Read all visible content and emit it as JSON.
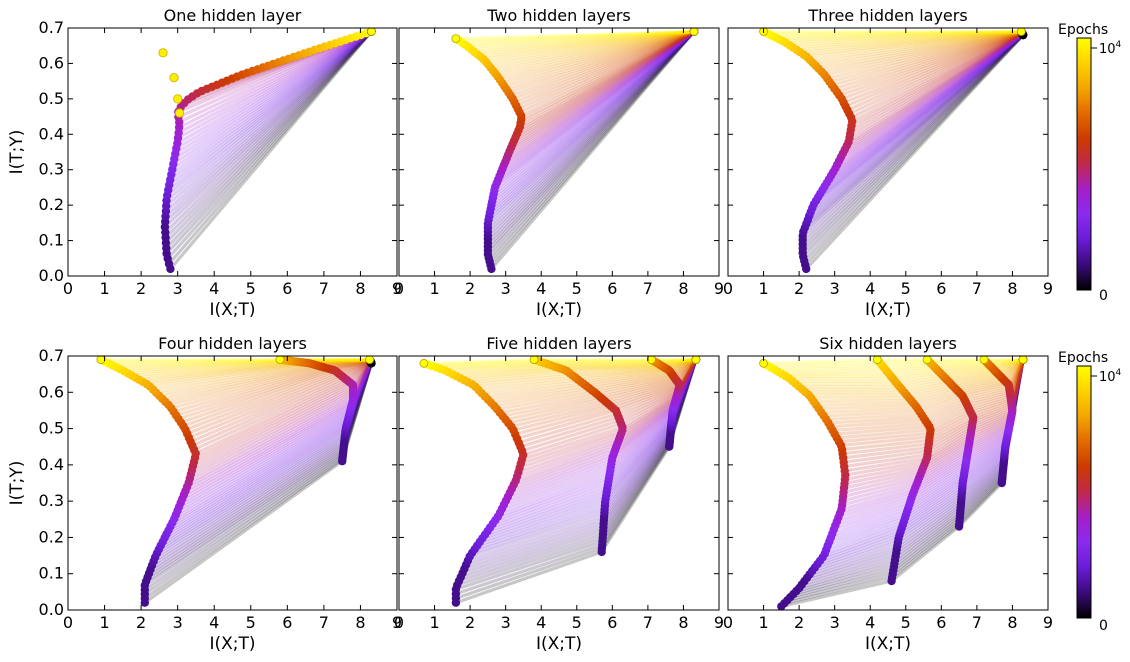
{
  "chart_data": [
    {
      "type": "line",
      "title": "One hidden layer",
      "xlabel": "I(X;T)",
      "ylabel": "I(T;Y)",
      "xlim": [
        0,
        9
      ],
      "ylim": [
        0,
        0.7
      ],
      "xticks": [
        0,
        1,
        2,
        3,
        4,
        5,
        6,
        7,
        8,
        9
      ],
      "yticks": [
        0.0,
        0.1,
        0.2,
        0.3,
        0.4,
        0.5,
        0.6,
        0.7
      ],
      "series": [
        {
          "points": [
            [
              2.8,
              0.02
            ],
            [
              2.7,
              0.06
            ],
            [
              2.65,
              0.14
            ],
            [
              2.7,
              0.22
            ],
            [
              2.85,
              0.3
            ],
            [
              3.0,
              0.38
            ],
            [
              3.05,
              0.43
            ],
            [
              3.0,
              0.46
            ],
            [
              3.1,
              0.48
            ],
            [
              3.3,
              0.5
            ],
            [
              3.6,
              0.52
            ],
            [
              4.8,
              0.57
            ],
            [
              6.8,
              0.64
            ],
            [
              8.3,
              0.69
            ]
          ]
        },
        {
          "points": [
            [
              8.3,
              0.69
            ]
          ]
        }
      ],
      "early_points": [
        [
          3.05,
          0.46
        ],
        [
          3.0,
          0.5
        ],
        [
          2.9,
          0.56
        ],
        [
          2.6,
          0.63
        ]
      ]
    },
    {
      "type": "line",
      "title": "Two hidden layers",
      "xlabel": "I(X;T)",
      "ylabel": "",
      "xlim": [
        0,
        9
      ],
      "ylim": [
        0,
        0.7
      ],
      "xticks": [
        0,
        1,
        2,
        3,
        4,
        5,
        6,
        7,
        8,
        9
      ],
      "yticks": [
        0.0,
        0.1,
        0.2,
        0.3,
        0.4,
        0.5,
        0.6,
        0.7
      ],
      "series": [
        {
          "points": [
            [
              2.6,
              0.02
            ],
            [
              2.5,
              0.06
            ],
            [
              2.5,
              0.15
            ],
            [
              2.7,
              0.25
            ],
            [
              3.1,
              0.35
            ],
            [
              3.4,
              0.42
            ],
            [
              3.45,
              0.45
            ],
            [
              3.2,
              0.5
            ],
            [
              2.8,
              0.56
            ],
            [
              2.4,
              0.61
            ],
            [
              1.9,
              0.65
            ],
            [
              1.6,
              0.67
            ]
          ]
        },
        {
          "points": [
            [
              8.3,
              0.69
            ]
          ]
        }
      ]
    },
    {
      "type": "line",
      "title": "Three hidden layers",
      "xlabel": "I(X;T)",
      "ylabel": "",
      "xlim": [
        0,
        9
      ],
      "ylim": [
        0,
        0.7
      ],
      "xticks": [
        0,
        1,
        2,
        3,
        4,
        5,
        6,
        7,
        8,
        9
      ],
      "yticks": [
        0.0,
        0.1,
        0.2,
        0.3,
        0.4,
        0.5,
        0.6,
        0.7
      ],
      "series": [
        {
          "points": [
            [
              2.2,
              0.02
            ],
            [
              2.1,
              0.06
            ],
            [
              2.1,
              0.12
            ],
            [
              2.4,
              0.2
            ],
            [
              3.0,
              0.3
            ],
            [
              3.4,
              0.38
            ],
            [
              3.5,
              0.44
            ],
            [
              3.2,
              0.5
            ],
            [
              2.7,
              0.57
            ],
            [
              2.2,
              0.62
            ],
            [
              1.6,
              0.66
            ],
            [
              1.0,
              0.69
            ]
          ]
        },
        {
          "points": [
            [
              8.3,
              0.68
            ],
            [
              8.25,
              0.69
            ]
          ]
        }
      ]
    },
    {
      "type": "line",
      "title": "Four hidden layers",
      "xlabel": "I(X;T)",
      "ylabel": "I(T;Y)",
      "xlim": [
        0,
        9
      ],
      "ylim": [
        0,
        0.7
      ],
      "xticks": [
        0,
        1,
        2,
        3,
        4,
        5,
        6,
        7,
        8,
        9
      ],
      "yticks": [
        0.0,
        0.1,
        0.2,
        0.3,
        0.4,
        0.5,
        0.6,
        0.7
      ],
      "series": [
        {
          "points": [
            [
              2.1,
              0.02
            ],
            [
              2.1,
              0.07
            ],
            [
              2.4,
              0.15
            ],
            [
              2.9,
              0.25
            ],
            [
              3.3,
              0.35
            ],
            [
              3.5,
              0.43
            ],
            [
              3.2,
              0.5
            ],
            [
              2.8,
              0.56
            ],
            [
              2.2,
              0.62
            ],
            [
              1.5,
              0.66
            ],
            [
              0.9,
              0.69
            ]
          ]
        },
        {
          "points": [
            [
              7.5,
              0.41
            ],
            [
              7.6,
              0.5
            ],
            [
              7.8,
              0.58
            ],
            [
              7.8,
              0.62
            ],
            [
              7.3,
              0.66
            ],
            [
              6.6,
              0.68
            ],
            [
              5.8,
              0.69
            ]
          ]
        },
        {
          "points": [
            [
              8.3,
              0.68
            ],
            [
              8.25,
              0.69
            ]
          ]
        }
      ]
    },
    {
      "type": "line",
      "title": "Five hidden layers",
      "xlabel": "I(X;T)",
      "ylabel": "",
      "xlim": [
        0,
        9
      ],
      "ylim": [
        0,
        0.7
      ],
      "xticks": [
        0,
        1,
        2,
        3,
        4,
        5,
        6,
        7,
        8,
        9
      ],
      "yticks": [
        0.0,
        0.1,
        0.2,
        0.3,
        0.4,
        0.5,
        0.6,
        0.7
      ],
      "series": [
        {
          "points": [
            [
              1.6,
              0.02
            ],
            [
              1.6,
              0.06
            ],
            [
              2.0,
              0.15
            ],
            [
              2.8,
              0.26
            ],
            [
              3.3,
              0.36
            ],
            [
              3.5,
              0.43
            ],
            [
              3.2,
              0.5
            ],
            [
              2.7,
              0.56
            ],
            [
              2.1,
              0.62
            ],
            [
              1.3,
              0.66
            ],
            [
              0.7,
              0.68
            ]
          ]
        },
        {
          "points": [
            [
              5.7,
              0.16
            ],
            [
              5.8,
              0.3
            ],
            [
              6.0,
              0.42
            ],
            [
              6.3,
              0.5
            ],
            [
              6.1,
              0.55
            ],
            [
              5.5,
              0.6
            ],
            [
              4.7,
              0.66
            ],
            [
              3.8,
              0.69
            ]
          ]
        },
        {
          "points": [
            [
              7.6,
              0.45
            ],
            [
              7.7,
              0.55
            ],
            [
              7.9,
              0.62
            ],
            [
              7.6,
              0.66
            ],
            [
              7.1,
              0.69
            ]
          ]
        },
        {
          "points": [
            [
              8.35,
              0.69
            ]
          ]
        }
      ]
    },
    {
      "type": "line",
      "title": "Six hidden layers",
      "xlabel": "I(X;T)",
      "ylabel": "",
      "xlim": [
        0,
        9
      ],
      "ylim": [
        0,
        0.7
      ],
      "xticks": [
        0,
        1,
        2,
        3,
        4,
        5,
        6,
        7,
        8,
        9
      ],
      "yticks": [
        0.0,
        0.1,
        0.2,
        0.3,
        0.4,
        0.5,
        0.6,
        0.7
      ],
      "series": [
        {
          "points": [
            [
              1.5,
              0.01
            ],
            [
              2.0,
              0.06
            ],
            [
              2.7,
              0.15
            ],
            [
              3.2,
              0.28
            ],
            [
              3.3,
              0.37
            ],
            [
              3.2,
              0.45
            ],
            [
              2.8,
              0.52
            ],
            [
              2.3,
              0.59
            ],
            [
              1.7,
              0.64
            ],
            [
              1.0,
              0.68
            ]
          ]
        },
        {
          "points": [
            [
              4.6,
              0.08
            ],
            [
              4.8,
              0.2
            ],
            [
              5.2,
              0.32
            ],
            [
              5.6,
              0.42
            ],
            [
              5.7,
              0.5
            ],
            [
              5.3,
              0.56
            ],
            [
              4.7,
              0.63
            ],
            [
              4.2,
              0.69
            ]
          ]
        },
        {
          "points": [
            [
              6.5,
              0.23
            ],
            [
              6.6,
              0.35
            ],
            [
              6.8,
              0.47
            ],
            [
              6.9,
              0.53
            ],
            [
              6.6,
              0.59
            ],
            [
              6.1,
              0.64
            ],
            [
              5.6,
              0.69
            ]
          ]
        },
        {
          "points": [
            [
              7.7,
              0.35
            ],
            [
              7.8,
              0.45
            ],
            [
              8.0,
              0.55
            ],
            [
              7.9,
              0.62
            ],
            [
              7.5,
              0.66
            ],
            [
              7.2,
              0.69
            ]
          ]
        },
        {
          "points": [
            [
              8.3,
              0.69
            ]
          ]
        }
      ]
    }
  ],
  "colorbar": {
    "label": "Epochs",
    "tick_min": "0",
    "tick_max_base": "10",
    "tick_max_exp": "4",
    "stops": [
      "#000000",
      "#3a0a7a",
      "#6a1cd6",
      "#8a2bf0",
      "#a51ec8",
      "#c0284a",
      "#cc3a00",
      "#e26a00",
      "#f3a500",
      "#ffd200",
      "#ffff00"
    ]
  }
}
